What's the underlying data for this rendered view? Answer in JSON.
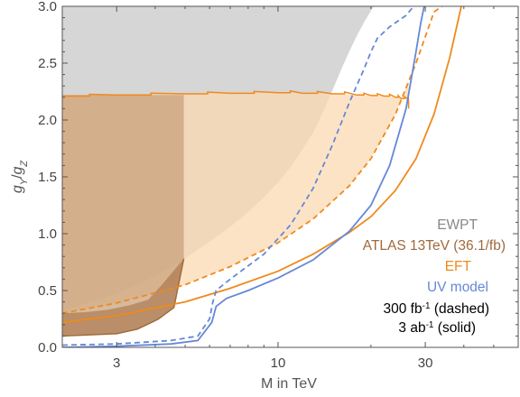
{
  "chart_data": {
    "type": "area",
    "xlabel": "M in TeV",
    "ylabel": "g_Y/g_Z",
    "x_scale": "log",
    "xlim": [
      2,
      60
    ],
    "ylim": [
      0,
      3
    ],
    "x_ticks": [
      3,
      10,
      30
    ],
    "x_tick_labels": [
      "3",
      "10",
      "30"
    ],
    "y_ticks": [
      0,
      0.5,
      1.0,
      1.5,
      2.0,
      2.5,
      3.0
    ],
    "y_tick_labels": [
      "0.0",
      "0.5",
      "1.0",
      "1.5",
      "2.0",
      "2.5",
      "3.0"
    ],
    "colors": {
      "ewpt": "#bdbdbd",
      "atlas": "#a0693c",
      "eft": "#ef8a1c",
      "uv": "#6688d6",
      "atlas_fill": "#c8a078",
      "eft_fill": "#fcd8b0"
    },
    "legend": {
      "placement": "bottom-right",
      "entries": [
        {
          "label": "EWPT",
          "color": "#888888"
        },
        {
          "label": "ATLAS 13TeV (36.1/fb)",
          "color": "#a0693c"
        },
        {
          "label": "EFT",
          "color": "#ef8a1c"
        },
        {
          "label": "UV model",
          "color": "#6688d6"
        }
      ],
      "lumi_dashed": {
        "base": "300 fb",
        "sup": "-1",
        "suffix": " (dashed)"
      },
      "lumi_solid": {
        "base": "3 ab",
        "sup": "-1",
        "suffix": " (solid)"
      }
    },
    "series": [
      {
        "name": "EWPT",
        "kind": "filled_region",
        "boundary_x": [
          2,
          3,
          4,
          5,
          6,
          7,
          8,
          9,
          10,
          11,
          12,
          13,
          14,
          15,
          16,
          17,
          18,
          19,
          20,
          21
        ],
        "boundary_y": [
          0.32,
          0.47,
          0.63,
          0.78,
          0.93,
          1.06,
          1.19,
          1.32,
          1.45,
          1.59,
          1.74,
          1.89,
          2.07,
          2.26,
          2.44,
          2.6,
          2.74,
          2.86,
          2.96,
          3.05
        ]
      },
      {
        "name": "ATLAS 13TeV (36.1/fb)",
        "kind": "filled_region",
        "upper_x": [
          4.95,
          4.2,
          3.8,
          3.3,
          2.8,
          2.4,
          2.0
        ],
        "upper_y": [
          0.78,
          0.55,
          0.42,
          0.37,
          0.33,
          0.31,
          0.3
        ],
        "lower_x": [
          2.0,
          2.5,
          3.0,
          3.5,
          3.9,
          4.1,
          4.6,
          4.95
        ],
        "lower_y": [
          0.1,
          0.11,
          0.12,
          0.16,
          0.22,
          0.25,
          0.35,
          0.78
        ],
        "top": 2.22
      },
      {
        "name": "EFT 3/ab (solid)",
        "kind": "line",
        "x": [
          2,
          3,
          5,
          7,
          10,
          13,
          17,
          20,
          24,
          28,
          32,
          36,
          40
        ],
        "y": [
          0.22,
          0.28,
          0.4,
          0.52,
          0.67,
          0.82,
          1.01,
          1.15,
          1.38,
          1.66,
          2.05,
          2.55,
          3.1
        ]
      },
      {
        "name": "EFT 300/fb (dashed)",
        "kind": "line",
        "x": [
          2,
          3,
          5,
          7,
          10,
          13,
          17,
          20,
          24,
          28,
          32,
          36
        ],
        "y": [
          0.3,
          0.39,
          0.55,
          0.71,
          0.92,
          1.13,
          1.42,
          1.66,
          2.05,
          2.5,
          2.95,
          3.05
        ]
      },
      {
        "name": "EFT validity band",
        "kind": "filled_region",
        "upper_x": [
          2,
          3,
          5,
          7,
          10,
          12,
          15,
          18,
          20,
          22,
          24,
          25,
          26.4,
          26.5
        ],
        "upper_y": [
          2.21,
          2.22,
          2.23,
          2.235,
          2.24,
          2.235,
          2.23,
          2.22,
          2.215,
          2.21,
          2.2,
          2.19,
          2.18,
          2.1
        ]
      },
      {
        "name": "UV model 3/ab (solid)",
        "kind": "line",
        "x": [
          2.0,
          3.0,
          4.5,
          5.5,
          6.1,
          6.3,
          6.8,
          8,
          10,
          13,
          17,
          20,
          23,
          26,
          28,
          29,
          30
        ],
        "y": [
          0.0,
          0.01,
          0.03,
          0.06,
          0.22,
          0.36,
          0.43,
          0.5,
          0.61,
          0.77,
          1.02,
          1.25,
          1.6,
          2.1,
          2.6,
          2.85,
          3.05
        ]
      },
      {
        "name": "UV model 300/fb (dashed)",
        "kind": "line",
        "x": [
          2.0,
          3.0,
          4.5,
          5.5,
          6.0,
          6.15,
          6.3,
          7,
          9,
          11,
          13,
          15,
          17,
          19,
          20,
          21,
          23,
          26,
          28.5
        ],
        "y": [
          0.02,
          0.03,
          0.06,
          0.1,
          0.25,
          0.4,
          0.5,
          0.6,
          0.82,
          1.08,
          1.4,
          1.78,
          2.15,
          2.45,
          2.6,
          2.72,
          2.82,
          2.92,
          3.05
        ]
      }
    ]
  }
}
